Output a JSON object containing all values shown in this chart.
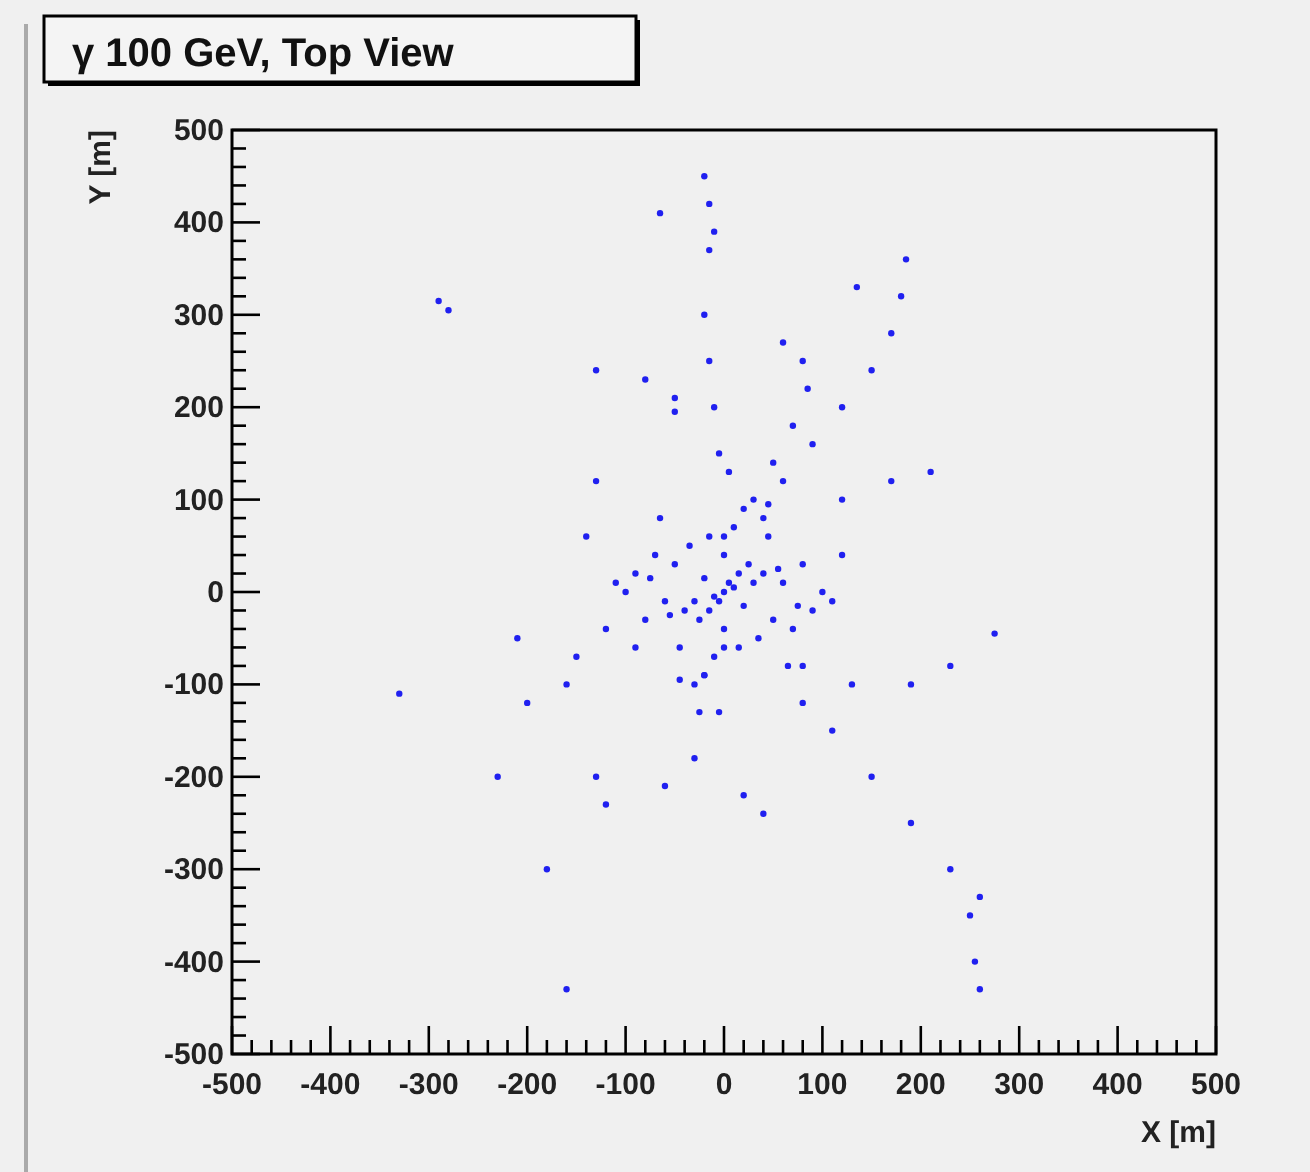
{
  "chart_data": {
    "type": "scatter",
    "title": "γ 100 GeV, Top View",
    "xlabel": "X [m]",
    "ylabel": "Y [m]",
    "xlim": [
      -500,
      500
    ],
    "ylim": [
      -500,
      500
    ],
    "grid": false,
    "marker": "circle",
    "xticks": [
      -500,
      {
        "value": -480,
        "label": null
      },
      {
        "value": -460,
        "label": null
      },
      {
        "value": -440,
        "label": null
      },
      {
        "value": -420,
        "label": null
      },
      -400,
      {
        "value": -380,
        "label": null
      },
      {
        "value": -360,
        "label": null
      },
      {
        "value": -340,
        "label": null
      },
      {
        "value": -320,
        "label": null
      },
      -300,
      {
        "value": -280,
        "label": null
      },
      {
        "value": -260,
        "label": null
      },
      {
        "value": -240,
        "label": null
      },
      {
        "value": -220,
        "label": null
      },
      -200,
      {
        "value": -180,
        "label": null
      },
      {
        "value": -160,
        "label": null
      },
      {
        "value": -140,
        "label": null
      },
      {
        "value": -120,
        "label": null
      },
      -100,
      {
        "value": -80,
        "label": null
      },
      {
        "value": -60,
        "label": null
      },
      {
        "value": -40,
        "label": null
      },
      {
        "value": -20,
        "label": null
      },
      0,
      {
        "value": 20,
        "label": null
      },
      {
        "value": 40,
        "label": null
      },
      {
        "value": 60,
        "label": null
      },
      {
        "value": 80,
        "label": null
      },
      100,
      {
        "value": 120,
        "label": null
      },
      {
        "value": 140,
        "label": null
      },
      {
        "value": 160,
        "label": null
      },
      {
        "value": 180,
        "label": null
      },
      200,
      {
        "value": 220,
        "label": null
      },
      {
        "value": 240,
        "label": null
      },
      {
        "value": 260,
        "label": null
      },
      {
        "value": 280,
        "label": null
      },
      300,
      {
        "value": 320,
        "label": null
      },
      {
        "value": 340,
        "label": null
      },
      {
        "value": 360,
        "label": null
      },
      {
        "value": 380,
        "label": null
      },
      400,
      {
        "value": 420,
        "label": null
      },
      {
        "value": 440,
        "label": null
      },
      {
        "value": 460,
        "label": null
      },
      {
        "value": 480,
        "label": null
      },
      500
    ],
    "yticks": [
      -500,
      {
        "value": -480,
        "label": null
      },
      {
        "value": -460,
        "label": null
      },
      {
        "value": -440,
        "label": null
      },
      {
        "value": -420,
        "label": null
      },
      -400,
      {
        "value": -380,
        "label": null
      },
      {
        "value": -360,
        "label": null
      },
      {
        "value": -340,
        "label": null
      },
      {
        "value": -320,
        "label": null
      },
      -300,
      {
        "value": -280,
        "label": null
      },
      {
        "value": -260,
        "label": null
      },
      {
        "value": -240,
        "label": null
      },
      {
        "value": -220,
        "label": null
      },
      -200,
      {
        "value": -180,
        "label": null
      },
      {
        "value": -160,
        "label": null
      },
      {
        "value": -140,
        "label": null
      },
      {
        "value": -120,
        "label": null
      },
      -100,
      {
        "value": -80,
        "label": null
      },
      {
        "value": -60,
        "label": null
      },
      {
        "value": -40,
        "label": null
      },
      {
        "value": -20,
        "label": null
      },
      0,
      {
        "value": 20,
        "label": null
      },
      {
        "value": 40,
        "label": null
      },
      {
        "value": 60,
        "label": null
      },
      {
        "value": 80,
        "label": null
      },
      100,
      {
        "value": 120,
        "label": null
      },
      {
        "value": 140,
        "label": null
      },
      {
        "value": 160,
        "label": null
      },
      {
        "value": 180,
        "label": null
      },
      200,
      {
        "value": 220,
        "label": null
      },
      {
        "value": 240,
        "label": null
      },
      {
        "value": 260,
        "label": null
      },
      {
        "value": 280,
        "label": null
      },
      300,
      {
        "value": 320,
        "label": null
      },
      {
        "value": 340,
        "label": null
      },
      {
        "value": 360,
        "label": null
      },
      {
        "value": 380,
        "label": null
      },
      400,
      {
        "value": 420,
        "label": null
      },
      {
        "value": 440,
        "label": null
      },
      {
        "value": 460,
        "label": null
      },
      {
        "value": 480,
        "label": null
      },
      500
    ],
    "series": [
      {
        "color": "#2020f0",
        "x": [
          -20,
          -15,
          -10,
          -15,
          -65,
          185,
          180,
          170,
          150,
          120,
          90,
          60,
          40,
          135,
          -290,
          -280,
          -130,
          -80,
          -50,
          -50,
          -20,
          -15,
          -10,
          -5,
          60,
          80,
          85,
          70,
          50,
          210,
          170,
          120,
          275,
          230,
          190,
          130,
          80,
          260,
          255,
          250,
          230,
          190,
          150,
          110,
          80,
          260,
          -130,
          -120,
          -60,
          -30,
          -25,
          -20,
          20,
          40,
          -230,
          -180,
          -160,
          -330,
          -210,
          -150,
          -90,
          -200,
          -160,
          -130,
          -140,
          0,
          5,
          -5,
          10,
          -10,
          15,
          -15,
          20,
          -20,
          25,
          -25,
          30,
          -30,
          0,
          0,
          0,
          0,
          40,
          -40,
          50,
          -50,
          60,
          -60,
          70,
          -70,
          80,
          -80,
          90,
          -90,
          100,
          -100,
          10,
          -10,
          35,
          -35,
          45,
          -45,
          55,
          -55,
          75,
          -75,
          20,
          -20,
          110,
          -110,
          30,
          -30,
          65,
          -65,
          15,
          -15,
          5,
          -5,
          120,
          -120,
          45,
          -45
        ],
        "values": [
          450,
          420,
          390,
          370,
          410,
          360,
          320,
          280,
          240,
          200,
          160,
          120,
          80,
          330,
          315,
          305,
          240,
          230,
          210,
          195,
          300,
          250,
          200,
          150,
          270,
          250,
          220,
          180,
          140,
          130,
          120,
          100,
          -45,
          -80,
          -100,
          -100,
          -80,
          -430,
          -400,
          -350,
          -300,
          -250,
          -200,
          -150,
          -120,
          -330,
          -200,
          -230,
          -210,
          -180,
          -130,
          -90,
          -220,
          -240,
          -200,
          -300,
          -430,
          -110,
          -50,
          -70,
          -60,
          -120,
          -100,
          120,
          60,
          0,
          10,
          -10,
          5,
          -5,
          20,
          -20,
          -15,
          15,
          30,
          -30,
          10,
          -10,
          40,
          -40,
          60,
          -60,
          20,
          -20,
          -30,
          30,
          10,
          -10,
          -40,
          40,
          30,
          -30,
          -20,
          20,
          0,
          0,
          70,
          -70,
          -50,
          50,
          60,
          -60,
          25,
          -25,
          -15,
          15,
          90,
          -90,
          -10,
          10,
          100,
          -100,
          -80,
          80,
          -60,
          60,
          130,
          -130,
          40,
          -40,
          95,
          -95
        ]
      }
    ]
  }
}
